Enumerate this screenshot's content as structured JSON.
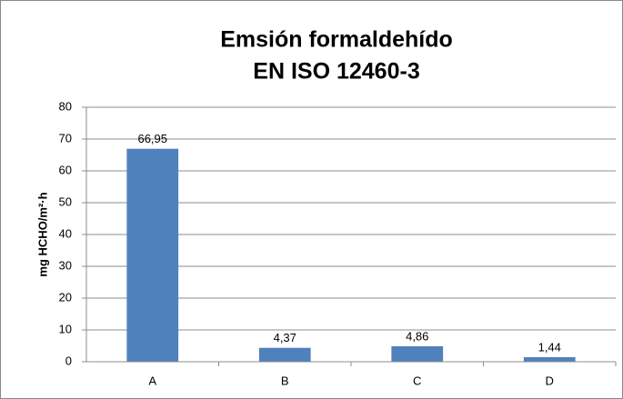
{
  "chart_data": {
    "type": "bar",
    "title": [
      "Emsión formaldehído",
      "EN ISO 12460-3"
    ],
    "y_label": "mg HCHO/m²·h",
    "categories": [
      "A",
      "B",
      "C",
      "D"
    ],
    "values": [
      66.95,
      4.37,
      4.86,
      1.44
    ],
    "value_labels": [
      "66,95",
      "4,37",
      "4,86",
      "1,44"
    ],
    "color": "#4f81bd",
    "ylim": [
      0,
      80
    ],
    "yticks": [
      0,
      10,
      20,
      30,
      40,
      50,
      60,
      70,
      80
    ],
    "grid": true
  }
}
